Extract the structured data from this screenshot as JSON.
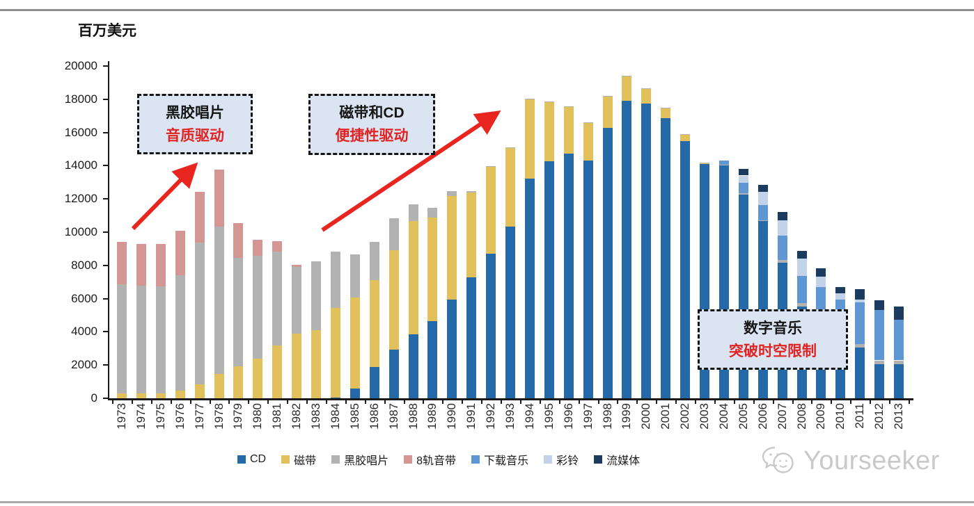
{
  "page": {
    "watermark_text": "Yourseeker"
  },
  "chart_data": {
    "type": "bar",
    "stacked": true,
    "title": "",
    "ylabel": "百万美元",
    "xlabel": "",
    "ylim": [
      0,
      20000
    ],
    "ytick_step": 2000,
    "grid": false,
    "legend_position": "bottom",
    "categories": [
      1973,
      1974,
      1975,
      1976,
      1977,
      1978,
      1979,
      1980,
      1981,
      1982,
      1983,
      1984,
      1985,
      1986,
      1987,
      1988,
      1989,
      1990,
      1991,
      1992,
      1993,
      1994,
      1995,
      1996,
      1997,
      1998,
      1999,
      2000,
      2001,
      2002,
      2003,
      2004,
      2005,
      2006,
      2007,
      2008,
      2009,
      2010,
      2011,
      2012,
      2013
    ],
    "series": [
      {
        "name": "CD",
        "color": "#2569a8",
        "values": [
          0,
          0,
          0,
          0,
          0,
          0,
          0,
          0,
          0,
          0,
          0,
          60,
          590,
          1880,
          2940,
          3830,
          4630,
          5960,
          7270,
          8710,
          10330,
          13210,
          14260,
          14730,
          14330,
          16280,
          17920,
          17750,
          16880,
          15500,
          14100,
          14000,
          12280,
          10660,
          8150,
          5520,
          4600,
          3700,
          3050,
          2070,
          2070
        ]
      },
      {
        "name": "磁带",
        "color": "#e2c05c",
        "values": [
          310,
          310,
          310,
          450,
          830,
          1480,
          1930,
          2380,
          3190,
          3900,
          4110,
          5380,
          5460,
          5230,
          5990,
          6820,
          6260,
          6200,
          5100,
          5240,
          4740,
          4780,
          3550,
          2800,
          2220,
          1860,
          1450,
          880,
          590,
          340,
          50,
          0,
          0,
          0,
          0,
          0,
          0,
          0,
          0,
          0,
          0
        ]
      },
      {
        "name": "黑胶唱片",
        "color": "#b2b2b2",
        "values": [
          6540,
          6470,
          6430,
          6940,
          8530,
          8860,
          6540,
          6190,
          5630,
          4000,
          4150,
          3400,
          2630,
          2290,
          1925,
          1010,
          575,
          290,
          110,
          40,
          40,
          40,
          40,
          40,
          40,
          40,
          40,
          40,
          40,
          40,
          40,
          50,
          50,
          60,
          180,
          210,
          200,
          200,
          210,
          210,
          210
        ]
      },
      {
        "name": "8轨音带",
        "color": "#d49693",
        "values": [
          2560,
          2490,
          2530,
          2700,
          3050,
          3430,
          2070,
          980,
          630,
          150,
          0,
          0,
          0,
          0,
          0,
          0,
          0,
          0,
          0,
          0,
          0,
          0,
          0,
          0,
          0,
          0,
          0,
          0,
          0,
          0,
          0,
          0,
          0,
          0,
          0,
          0,
          0,
          0,
          0,
          0,
          0
        ]
      },
      {
        "name": "下载音乐",
        "color": "#5e97d3",
        "values": [
          0,
          0,
          0,
          0,
          0,
          0,
          0,
          0,
          0,
          0,
          0,
          0,
          0,
          0,
          0,
          0,
          0,
          0,
          0,
          0,
          0,
          0,
          0,
          0,
          0,
          0,
          0,
          0,
          0,
          0,
          0,
          260,
          620,
          920,
          1480,
          1620,
          1900,
          2050,
          2500,
          3030,
          2460
        ]
      },
      {
        "name": "彩铃",
        "color": "#c2d2e8",
        "values": [
          0,
          0,
          0,
          0,
          0,
          0,
          0,
          0,
          0,
          0,
          0,
          0,
          0,
          0,
          0,
          0,
          0,
          0,
          0,
          0,
          0,
          0,
          0,
          0,
          0,
          0,
          0,
          0,
          0,
          0,
          0,
          0,
          460,
          770,
          915,
          1050,
          640,
          350,
          200,
          0,
          0
        ]
      },
      {
        "name": "流媒体",
        "color": "#1b3c5f",
        "values": [
          0,
          0,
          0,
          0,
          0,
          0,
          0,
          0,
          0,
          0,
          0,
          0,
          0,
          0,
          0,
          0,
          0,
          0,
          0,
          0,
          0,
          0,
          0,
          0,
          0,
          0,
          0,
          0,
          0,
          0,
          0,
          0,
          400,
          420,
          490,
          490,
          500,
          400,
          600,
          590,
          780
        ]
      }
    ]
  },
  "annotations": [
    {
      "title": "黑胶唱片",
      "subtitle": "音质驱动"
    },
    {
      "title": "磁带和CD",
      "subtitle": "便捷性驱动"
    },
    {
      "title": "数字音乐",
      "subtitle": "突破时空限制"
    }
  ]
}
